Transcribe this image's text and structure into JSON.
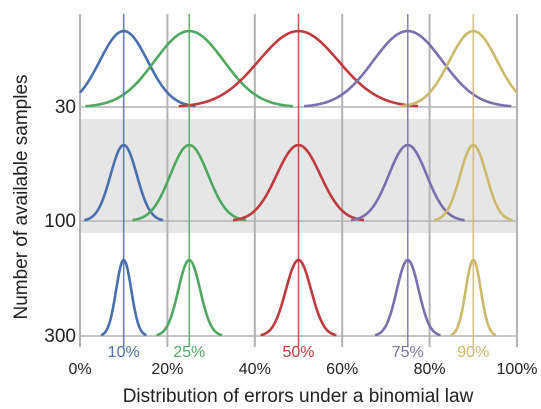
{
  "chart_data": {
    "type": "line",
    "title": "",
    "xlabel": "Distribution of errors under a binomial law",
    "ylabel": "Number of available samples",
    "xlim": [
      0,
      1
    ],
    "x_tick_values": [
      0,
      0.2,
      0.4,
      0.6,
      0.8,
      1.0
    ],
    "x_tick_labels": [
      "0%",
      "20%",
      "40%",
      "60%",
      "80%",
      "100%"
    ],
    "rows": [
      {
        "n": 30,
        "label": "30",
        "shaded": false
      },
      {
        "n": 100,
        "label": "100",
        "shaded": true
      },
      {
        "n": 300,
        "label": "300",
        "shaded": false
      }
    ],
    "series": [
      {
        "name": "10%",
        "p": 0.1,
        "color": "#4a6fae"
      },
      {
        "name": "25%",
        "p": 0.25,
        "color": "#4fa860"
      },
      {
        "name": "50%",
        "p": 0.5,
        "color": "#c0393f"
      },
      {
        "name": "75%",
        "p": 0.75,
        "color": "#7b6fae"
      },
      {
        "name": "90%",
        "p": 0.9,
        "color": "#cdb96a"
      }
    ],
    "grid": true,
    "gridline_color": "#b3b3b3",
    "shade_color": "#e6e6e6"
  }
}
